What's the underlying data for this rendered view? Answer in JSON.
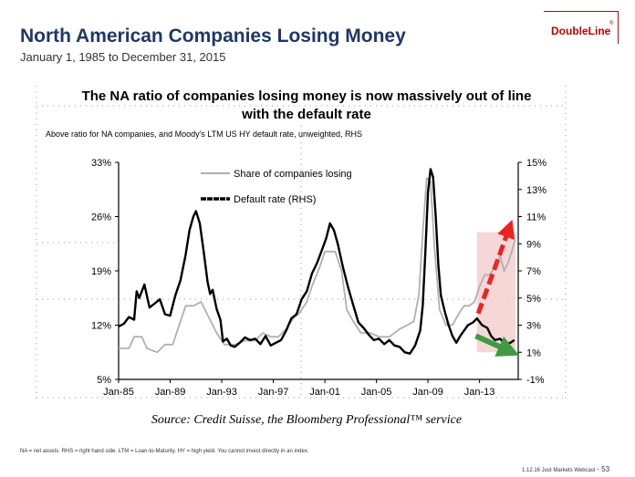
{
  "header": {
    "title": "North American Companies Losing Money",
    "subtitle": "January 1, 1985 to December 31, 2015"
  },
  "logo": {
    "text": "DoubleLine",
    "reg": "®"
  },
  "chart_data": {
    "type": "line",
    "title": "The NA ratio of companies losing money is now massively out of line with the default rate",
    "subtitle": "Above ratio for NA companies, and Moody's LTM US HY default rate, unweighted, RHS",
    "source": "Source: Credit Suisse, the Bloomberg Professional™ service",
    "x_range": [
      1985,
      2016
    ],
    "x_ticks": [
      {
        "label": "Jan-85",
        "x": 1985
      },
      {
        "label": "Jan-89",
        "x": 1989
      },
      {
        "label": "Jan-93",
        "x": 1993
      },
      {
        "label": "Jan-97",
        "x": 1997
      },
      {
        "label": "Jan-01",
        "x": 2001
      },
      {
        "label": "Jan-05",
        "x": 2005
      },
      {
        "label": "Jan-09",
        "x": 2009
      },
      {
        "label": "Jan-13",
        "x": 2013
      }
    ],
    "y_left": {
      "range": [
        5,
        33
      ],
      "ticks": [
        5,
        12,
        19,
        26,
        33
      ],
      "tick_labels": [
        "5%",
        "12%",
        "19%",
        "26%",
        "33%"
      ]
    },
    "y_right": {
      "range": [
        -1,
        15
      ],
      "ticks": [
        -1,
        1,
        3,
        5,
        7,
        9,
        11,
        13,
        15
      ],
      "tick_labels": [
        "-1%",
        "1%",
        "3%",
        "5%",
        "7%",
        "9%",
        "11%",
        "13%",
        "15%"
      ]
    },
    "series": [
      {
        "name": "Share of companies losing",
        "axis": "left",
        "color": "#b0b0b0",
        "points": [
          [
            1985.0,
            9.0
          ],
          [
            1985.8,
            9.0
          ],
          [
            1986.2,
            10.5
          ],
          [
            1986.8,
            10.5
          ],
          [
            1987.2,
            9.0
          ],
          [
            1988.0,
            8.5
          ],
          [
            1988.6,
            9.5
          ],
          [
            1989.2,
            9.5
          ],
          [
            1989.6,
            11.5
          ],
          [
            1990.2,
            14.5
          ],
          [
            1990.8,
            14.5
          ],
          [
            1991.4,
            15.0
          ],
          [
            1992.0,
            13.0
          ],
          [
            1992.6,
            11.0
          ],
          [
            1993.2,
            9.5
          ],
          [
            1994.0,
            9.5
          ],
          [
            1994.8,
            10.0
          ],
          [
            1995.6,
            10.0
          ],
          [
            1996.2,
            11.0
          ],
          [
            1996.8,
            10.5
          ],
          [
            1997.4,
            10.5
          ],
          [
            1998.0,
            11.5
          ],
          [
            1998.6,
            13.0
          ],
          [
            1999.0,
            13.5
          ],
          [
            1999.6,
            15.0
          ],
          [
            2000.0,
            17.0
          ],
          [
            2000.6,
            19.5
          ],
          [
            2001.0,
            21.5
          ],
          [
            2001.4,
            21.5
          ],
          [
            2001.8,
            21.5
          ],
          [
            2002.3,
            19.0
          ],
          [
            2002.7,
            14.0
          ],
          [
            2003.2,
            12.5
          ],
          [
            2003.8,
            11.0
          ],
          [
            2004.5,
            11.0
          ],
          [
            2005.2,
            10.5
          ],
          [
            2006.0,
            10.5
          ],
          [
            2006.8,
            11.5
          ],
          [
            2007.4,
            12.0
          ],
          [
            2007.9,
            12.5
          ],
          [
            2008.3,
            16.0
          ],
          [
            2008.6,
            24.0
          ],
          [
            2008.9,
            31.0
          ],
          [
            2009.2,
            30.5
          ],
          [
            2009.5,
            22.0
          ],
          [
            2009.9,
            14.0
          ],
          [
            2010.4,
            12.0
          ],
          [
            2010.9,
            12.0
          ],
          [
            2011.4,
            13.5
          ],
          [
            2011.8,
            14.5
          ],
          [
            2012.2,
            14.5
          ],
          [
            2012.6,
            15.0
          ],
          [
            2013.0,
            17.0
          ],
          [
            2013.4,
            18.5
          ],
          [
            2013.8,
            18.5
          ],
          [
            2014.2,
            19.5
          ],
          [
            2014.6,
            21.0
          ],
          [
            2014.9,
            19.0
          ],
          [
            2015.2,
            20.0
          ],
          [
            2015.5,
            21.5
          ],
          [
            2015.75,
            23.0
          ]
        ]
      },
      {
        "name": "Default rate (RHS)",
        "axis": "right",
        "color": "#000000",
        "points": [
          [
            1985.0,
            2.9
          ],
          [
            1985.4,
            3.1
          ],
          [
            1985.8,
            3.6
          ],
          [
            1986.2,
            3.4
          ],
          [
            1986.4,
            5.5
          ],
          [
            1986.6,
            5.0
          ],
          [
            1987.0,
            6.0
          ],
          [
            1987.4,
            4.3
          ],
          [
            1987.8,
            4.6
          ],
          [
            1988.2,
            4.9
          ],
          [
            1988.6,
            3.8
          ],
          [
            1989.0,
            3.7
          ],
          [
            1989.4,
            5.2
          ],
          [
            1989.8,
            6.3
          ],
          [
            1990.2,
            8.2
          ],
          [
            1990.5,
            10.0
          ],
          [
            1990.8,
            11.0
          ],
          [
            1991.0,
            11.4
          ],
          [
            1991.3,
            10.5
          ],
          [
            1991.6,
            8.4
          ],
          [
            1991.9,
            6.2
          ],
          [
            1992.1,
            5.3
          ],
          [
            1992.3,
            5.6
          ],
          [
            1992.6,
            4.2
          ],
          [
            1992.9,
            3.4
          ],
          [
            1993.1,
            1.8
          ],
          [
            1993.4,
            2.0
          ],
          [
            1993.7,
            1.5
          ],
          [
            1994.0,
            1.4
          ],
          [
            1994.4,
            1.7
          ],
          [
            1994.8,
            2.1
          ],
          [
            1995.2,
            1.9
          ],
          [
            1995.6,
            2.0
          ],
          [
            1996.0,
            1.6
          ],
          [
            1996.4,
            2.2
          ],
          [
            1996.8,
            1.5
          ],
          [
            1997.2,
            1.7
          ],
          [
            1997.6,
            1.9
          ],
          [
            1998.0,
            2.6
          ],
          [
            1998.4,
            3.5
          ],
          [
            1998.8,
            3.8
          ],
          [
            1999.2,
            4.9
          ],
          [
            1999.6,
            5.5
          ],
          [
            2000.0,
            6.8
          ],
          [
            2000.4,
            7.6
          ],
          [
            2000.8,
            8.6
          ],
          [
            2001.1,
            9.4
          ],
          [
            2001.4,
            10.5
          ],
          [
            2001.7,
            10.0
          ],
          [
            2002.0,
            9.0
          ],
          [
            2002.4,
            7.3
          ],
          [
            2002.8,
            5.8
          ],
          [
            2003.2,
            4.5
          ],
          [
            2003.6,
            3.2
          ],
          [
            2004.0,
            2.8
          ],
          [
            2004.4,
            2.3
          ],
          [
            2004.8,
            1.9
          ],
          [
            2005.2,
            2.0
          ],
          [
            2005.6,
            1.6
          ],
          [
            2006.0,
            1.9
          ],
          [
            2006.4,
            1.5
          ],
          [
            2006.8,
            1.4
          ],
          [
            2007.2,
            1.0
          ],
          [
            2007.6,
            0.9
          ],
          [
            2008.0,
            1.5
          ],
          [
            2008.4,
            2.6
          ],
          [
            2008.6,
            4.5
          ],
          [
            2008.8,
            8.5
          ],
          [
            2009.0,
            12.8
          ],
          [
            2009.2,
            14.5
          ],
          [
            2009.4,
            13.9
          ],
          [
            2009.6,
            11.0
          ],
          [
            2009.8,
            7.5
          ],
          [
            2010.0,
            5.2
          ],
          [
            2010.3,
            4.0
          ],
          [
            2010.6,
            3.0
          ],
          [
            2010.9,
            2.2
          ],
          [
            2011.2,
            1.7
          ],
          [
            2011.5,
            2.2
          ],
          [
            2011.8,
            2.6
          ],
          [
            2012.1,
            3.0
          ],
          [
            2012.5,
            3.2
          ],
          [
            2012.8,
            3.5
          ],
          [
            2013.2,
            3.0
          ],
          [
            2013.6,
            2.8
          ],
          [
            2013.9,
            2.2
          ],
          [
            2014.2,
            1.9
          ],
          [
            2014.6,
            2.0
          ],
          [
            2015.0,
            1.6
          ],
          [
            2015.4,
            1.7
          ],
          [
            2015.7,
            1.9
          ]
        ]
      }
    ],
    "annotations": [
      {
        "type": "box",
        "x": [
          2012.8,
          2015.8
        ],
        "y_left": [
          8.5,
          24.0
        ],
        "color": "#f2c9c9"
      },
      {
        "type": "arrow",
        "direction": "up",
        "color": "#ee2222",
        "from": [
          2012.9,
          13.5
        ],
        "to": [
          2015.3,
          24.5
        ]
      },
      {
        "type": "arrow",
        "direction": "down-right",
        "color": "#3f9b3f",
        "from": [
          2012.7,
          2.2
        ],
        "to": [
          2015.3,
          1.1
        ]
      }
    ],
    "legend": [
      "Share of companies losing",
      "Default rate (RHS)"
    ]
  },
  "footer": {
    "notes": "NA = net assets. RHS = right hand side. LTM = Loan-to-Maturity. HY = high yield. You cannot invest directly in  an  index.",
    "page_label": "1.12.16 Just Markets Webcast",
    "page_number": "- 53"
  }
}
